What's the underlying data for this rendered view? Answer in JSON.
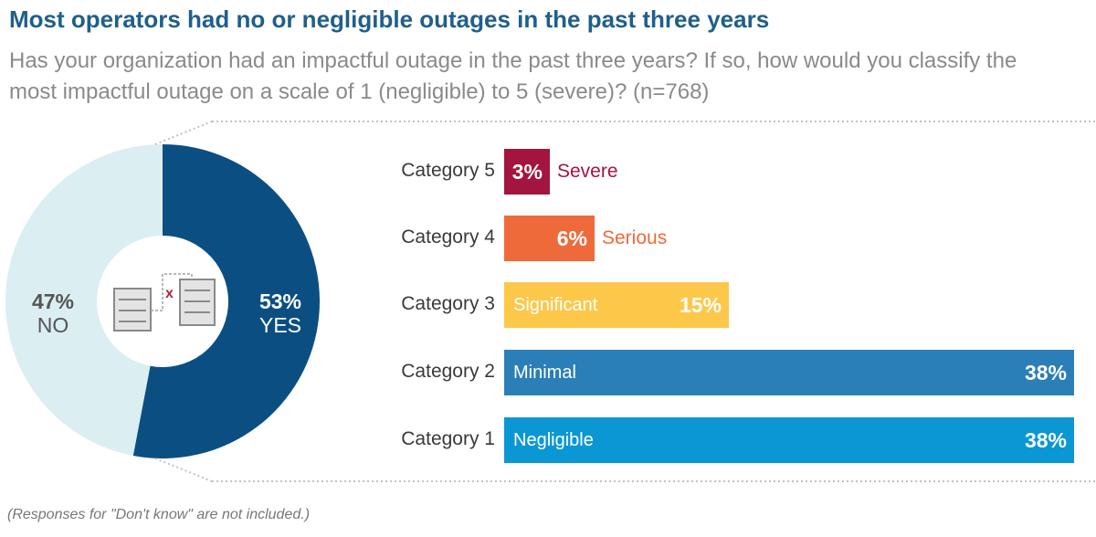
{
  "title": "Most operators had no or negligible outages in the past three years",
  "subtitle": "Has your organization had an impactful outage in the past three years? If so, how would you classify the most impactful outage on a scale of 1 (negligible) to 5 (severe)? (n=768)",
  "footnote": "(Responses for \"Don't know\" are not included.)",
  "chart_data": [
    {
      "type": "pie",
      "variant": "donut",
      "slices": [
        {
          "label": "YES",
          "value": 53,
          "display": "53%",
          "color": "#0b4f82"
        },
        {
          "label": "NO",
          "value": 47,
          "display": "47%",
          "color": "#dbeef2"
        }
      ],
      "center_icon": "server-outage-icon"
    },
    {
      "type": "bar",
      "orientation": "horizontal",
      "unit": "%",
      "xlim": [
        0,
        38
      ],
      "categories": [
        "Category 5",
        "Category 4",
        "Category 3",
        "Category 2",
        "Category 1"
      ],
      "values": [
        3,
        6,
        15,
        38,
        38
      ],
      "value_labels": [
        "3%",
        "6%",
        "15%",
        "38%",
        "38%"
      ],
      "descriptors": [
        "Severe",
        "Serious",
        "Significant",
        "Minimal",
        "Negligible"
      ],
      "colors": [
        "#a3153f",
        "#ef6a3a",
        "#fdc84a",
        "#2a7fb8",
        "#0b97d3"
      ]
    }
  ]
}
